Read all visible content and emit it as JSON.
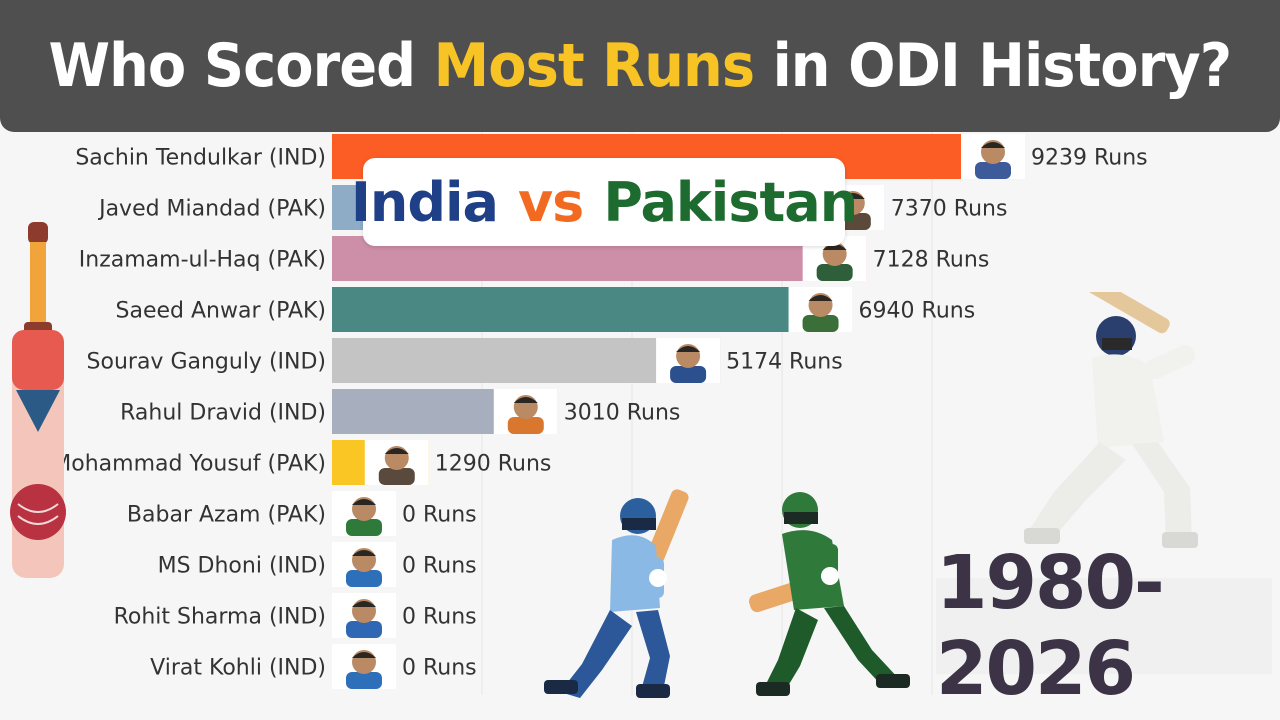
{
  "header": {
    "title_part1": "Who Scored ",
    "title_highlight": "Most Runs",
    "title_part2": " in ODI History?"
  },
  "overlay": {
    "team1": "India",
    "vs": "vs",
    "team2": "Pakistan"
  },
  "period": "1980-2026",
  "colors": {
    "header_bg": "#4f4f4f",
    "highlight": "#f7c325",
    "india_text": "#1f3f86",
    "vs_text": "#f26a21",
    "pakistan_text": "#1e6b2f"
  },
  "chart_data": {
    "type": "bar",
    "orientation": "horizontal",
    "categories": [
      "Sachin Tendulkar (IND)",
      "Javed Miandad (PAK)",
      "Inzamam-ul-Haq (PAK)",
      "Saeed Anwar (PAK)",
      "Sourav Ganguly (IND)",
      "Rahul Dravid (IND)",
      "Mohammad Yousuf (PAK)",
      "Babar Azam (PAK)",
      "MS Dhoni (IND)",
      "Rohit Sharma (IND)",
      "Virat Kohli (IND)"
    ],
    "values": [
      9239,
      7370,
      7128,
      6940,
      5174,
      3010,
      1290,
      0,
      0,
      0,
      0
    ],
    "value_labels": [
      "9239 Runs",
      "7370 Runs",
      "7128 Runs",
      "6940 Runs",
      "5174 Runs",
      "3010 Runs",
      "1290 Runs",
      "0 Runs",
      "0 Runs",
      "0 Runs",
      "0 Runs"
    ],
    "bar_colors": [
      "#fc5d25",
      "#8facc6",
      "#cd8ea8",
      "#4a8983",
      "#c4c4c4",
      "#a7afbf",
      "#f9c623",
      "#c4c4c4",
      "#c4c4c4",
      "#c4c4c4",
      "#c4c4c4"
    ],
    "avatar_colors": [
      "#3d5a9a",
      "#5b4a3a",
      "#2f5f3a",
      "#3b6f3a",
      "#2c4f8e",
      "#d9772f",
      "#5a4a3e",
      "#2f7a3a",
      "#2d6fb8",
      "#3067b5",
      "#2d6fb8"
    ],
    "xlim": [
      0,
      9500
    ],
    "grid": true
  }
}
